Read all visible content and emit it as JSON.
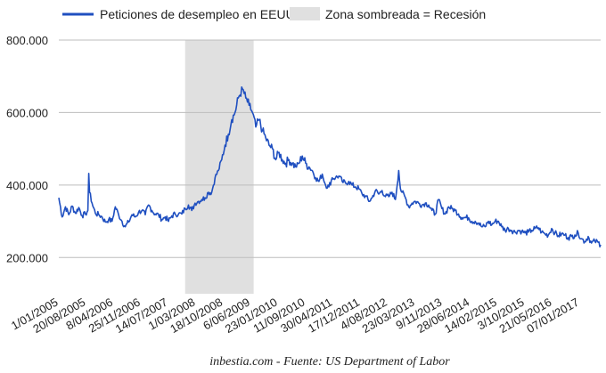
{
  "chart_data": {
    "type": "line",
    "title": "",
    "xlabel": "",
    "ylabel": "",
    "xlim": [
      "2005-01-01",
      "2017-07-01"
    ],
    "ylim": [
      100000,
      800000
    ],
    "grid": true,
    "legend_position": "top",
    "y_ticks": [
      {
        "value": 200000,
        "label": "200.000"
      },
      {
        "value": 400000,
        "label": "400.000"
      },
      {
        "value": 600000,
        "label": "600.000"
      },
      {
        "value": 800000,
        "label": "800.000"
      }
    ],
    "x_ticks": [
      {
        "date": "2005-01-01",
        "label": "1/01/2005"
      },
      {
        "date": "2005-08-20",
        "label": "20/08/2005"
      },
      {
        "date": "2006-04-08",
        "label": "8/04/2006"
      },
      {
        "date": "2006-11-25",
        "label": "25/11/2006"
      },
      {
        "date": "2007-07-14",
        "label": "14/07/2007"
      },
      {
        "date": "2008-03-01",
        "label": "1/03/2008"
      },
      {
        "date": "2008-10-18",
        "label": "18/10/2008"
      },
      {
        "date": "2009-06-06",
        "label": "6/06/2009"
      },
      {
        "date": "2010-01-23",
        "label": "23/01/2010"
      },
      {
        "date": "2010-09-11",
        "label": "11/09/2010"
      },
      {
        "date": "2011-04-30",
        "label": "30/04/2011"
      },
      {
        "date": "2011-12-17",
        "label": "17/12/2011"
      },
      {
        "date": "2012-08-04",
        "label": "4/08/2012"
      },
      {
        "date": "2013-03-23",
        "label": "23/03/2013"
      },
      {
        "date": "2013-11-09",
        "label": "9/11/2013"
      },
      {
        "date": "2014-06-28",
        "label": "28/06/2014"
      },
      {
        "date": "2015-02-14",
        "label": "14/02/2015"
      },
      {
        "date": "2015-10-03",
        "label": "3/10/2015"
      },
      {
        "date": "2016-05-21",
        "label": "21/05/2016"
      },
      {
        "date": "2017-01-07",
        "label": "07/01/2017"
      }
    ],
    "recession": {
      "name": "Zona sombreada = Recesión",
      "start": "2007-12-01",
      "end": "2009-06-30",
      "color": "#e0e0e0"
    },
    "series": [
      {
        "name": "Peticiones de desempleo en EEUU",
        "color": "#1f4fc0",
        "points": [
          [
            "2005-01-01",
            365000
          ],
          [
            "2005-01-29",
            312000
          ],
          [
            "2005-02-26",
            340000
          ],
          [
            "2005-03-26",
            318000
          ],
          [
            "2005-04-23",
            342000
          ],
          [
            "2005-05-21",
            322000
          ],
          [
            "2005-06-18",
            338000
          ],
          [
            "2005-07-16",
            316000
          ],
          [
            "2005-08-13",
            320000
          ],
          [
            "2005-09-03",
            330000
          ],
          [
            "2005-09-10",
            432000
          ],
          [
            "2005-09-17",
            380000
          ],
          [
            "2005-10-08",
            350000
          ],
          [
            "2005-11-05",
            322000
          ],
          [
            "2005-12-03",
            318000
          ],
          [
            "2005-12-31",
            312000
          ],
          [
            "2006-01-28",
            298000
          ],
          [
            "2006-02-25",
            305000
          ],
          [
            "2006-03-25",
            300000
          ],
          [
            "2006-04-22",
            340000
          ],
          [
            "2006-05-20",
            318000
          ],
          [
            "2006-06-17",
            300000
          ],
          [
            "2006-07-15",
            285000
          ],
          [
            "2006-08-12",
            298000
          ],
          [
            "2006-09-09",
            318000
          ],
          [
            "2006-10-07",
            312000
          ],
          [
            "2006-11-04",
            325000
          ],
          [
            "2006-12-02",
            330000
          ],
          [
            "2006-12-30",
            318000
          ],
          [
            "2007-01-27",
            345000
          ],
          [
            "2007-02-24",
            330000
          ],
          [
            "2007-03-24",
            320000
          ],
          [
            "2007-04-21",
            318000
          ],
          [
            "2007-05-19",
            305000
          ],
          [
            "2007-06-16",
            312000
          ],
          [
            "2007-07-14",
            300000
          ],
          [
            "2007-08-11",
            315000
          ],
          [
            "2007-09-08",
            320000
          ],
          [
            "2007-10-06",
            320000
          ],
          [
            "2007-11-03",
            320000
          ],
          [
            "2007-12-01",
            335000
          ],
          [
            "2007-12-29",
            345000
          ],
          [
            "2008-01-26",
            330000
          ],
          [
            "2008-02-23",
            350000
          ],
          [
            "2008-03-22",
            355000
          ],
          [
            "2008-04-19",
            360000
          ],
          [
            "2008-05-17",
            365000
          ],
          [
            "2008-06-14",
            380000
          ],
          [
            "2008-07-12",
            380000
          ],
          [
            "2008-08-09",
            420000
          ],
          [
            "2008-09-06",
            440000
          ],
          [
            "2008-10-04",
            470000
          ],
          [
            "2008-11-01",
            510000
          ],
          [
            "2008-11-29",
            540000
          ],
          [
            "2008-12-27",
            580000
          ],
          [
            "2009-01-24",
            600000
          ],
          [
            "2009-02-21",
            640000
          ],
          [
            "2009-03-28",
            665000
          ],
          [
            "2009-04-25",
            640000
          ],
          [
            "2009-05-23",
            620000
          ],
          [
            "2009-06-20",
            600000
          ],
          [
            "2009-07-18",
            560000
          ],
          [
            "2009-08-15",
            580000
          ],
          [
            "2009-09-12",
            550000
          ],
          [
            "2009-10-10",
            530000
          ],
          [
            "2009-11-07",
            510000
          ],
          [
            "2009-12-05",
            500000
          ],
          [
            "2010-01-02",
            470000
          ],
          [
            "2010-01-30",
            490000
          ],
          [
            "2010-02-27",
            470000
          ],
          [
            "2010-03-27",
            460000
          ],
          [
            "2010-04-24",
            470000
          ],
          [
            "2010-05-22",
            460000
          ],
          [
            "2010-06-19",
            450000
          ],
          [
            "2010-07-17",
            460000
          ],
          [
            "2010-08-14",
            480000
          ],
          [
            "2010-09-11",
            460000
          ],
          [
            "2010-10-09",
            450000
          ],
          [
            "2010-11-06",
            440000
          ],
          [
            "2010-12-04",
            420000
          ],
          [
            "2011-01-01",
            410000
          ],
          [
            "2011-01-29",
            430000
          ],
          [
            "2011-02-26",
            400000
          ],
          [
            "2011-03-26",
            395000
          ],
          [
            "2011-04-23",
            420000
          ],
          [
            "2011-05-21",
            420000
          ],
          [
            "2011-06-18",
            425000
          ],
          [
            "2011-07-16",
            410000
          ],
          [
            "2011-08-13",
            405000
          ],
          [
            "2011-09-10",
            410000
          ],
          [
            "2011-10-08",
            400000
          ],
          [
            "2011-11-05",
            395000
          ],
          [
            "2011-12-03",
            390000
          ],
          [
            "2011-12-31",
            375000
          ],
          [
            "2012-01-28",
            370000
          ],
          [
            "2012-02-25",
            355000
          ],
          [
            "2012-03-24",
            365000
          ],
          [
            "2012-04-21",
            385000
          ],
          [
            "2012-05-19",
            375000
          ],
          [
            "2012-06-16",
            385000
          ],
          [
            "2012-07-14",
            368000
          ],
          [
            "2012-08-11",
            368000
          ],
          [
            "2012-09-08",
            380000
          ],
          [
            "2012-10-06",
            360000
          ],
          [
            "2012-11-03",
            440000
          ],
          [
            "2012-11-17",
            390000
          ],
          [
            "2012-12-01",
            380000
          ],
          [
            "2012-12-29",
            365000
          ],
          [
            "2013-01-26",
            340000
          ],
          [
            "2013-02-23",
            350000
          ],
          [
            "2013-03-23",
            355000
          ],
          [
            "2013-04-20",
            350000
          ],
          [
            "2013-05-18",
            345000
          ],
          [
            "2013-06-15",
            350000
          ],
          [
            "2013-07-13",
            345000
          ],
          [
            "2013-08-10",
            330000
          ],
          [
            "2013-09-07",
            320000
          ],
          [
            "2013-10-05",
            360000
          ],
          [
            "2013-11-02",
            335000
          ],
          [
            "2013-11-30",
            320000
          ],
          [
            "2013-12-28",
            340000
          ],
          [
            "2014-01-25",
            335000
          ],
          [
            "2014-02-22",
            330000
          ],
          [
            "2014-03-22",
            320000
          ],
          [
            "2014-04-19",
            310000
          ],
          [
            "2014-05-17",
            310000
          ],
          [
            "2014-06-14",
            310000
          ],
          [
            "2014-07-12",
            300000
          ],
          [
            "2014-08-09",
            300000
          ],
          [
            "2014-09-06",
            295000
          ],
          [
            "2014-10-04",
            285000
          ],
          [
            "2014-11-01",
            285000
          ],
          [
            "2014-11-29",
            300000
          ],
          [
            "2014-12-27",
            290000
          ],
          [
            "2015-01-24",
            300000
          ],
          [
            "2015-02-21",
            300000
          ],
          [
            "2015-03-21",
            285000
          ],
          [
            "2015-04-18",
            275000
          ],
          [
            "2015-05-16",
            280000
          ],
          [
            "2015-06-13",
            275000
          ],
          [
            "2015-07-11",
            270000
          ],
          [
            "2015-08-08",
            275000
          ],
          [
            "2015-09-05",
            272000
          ],
          [
            "2015-10-03",
            268000
          ],
          [
            "2015-10-31",
            270000
          ],
          [
            "2015-11-28",
            275000
          ],
          [
            "2015-12-26",
            280000
          ],
          [
            "2016-01-23",
            282000
          ],
          [
            "2016-02-20",
            270000
          ],
          [
            "2016-03-19",
            265000
          ],
          [
            "2016-04-16",
            262000
          ],
          [
            "2016-05-14",
            280000
          ],
          [
            "2016-06-11",
            268000
          ],
          [
            "2016-07-09",
            260000
          ],
          [
            "2016-08-06",
            265000
          ],
          [
            "2016-09-03",
            262000
          ],
          [
            "2016-10-01",
            255000
          ],
          [
            "2016-10-29",
            258000
          ],
          [
            "2016-11-26",
            262000
          ],
          [
            "2016-12-24",
            268000
          ],
          [
            "2017-01-21",
            252000
          ],
          [
            "2017-02-18",
            244000
          ],
          [
            "2017-03-18",
            258000
          ],
          [
            "2017-04-15",
            240000
          ],
          [
            "2017-05-13",
            245000
          ],
          [
            "2017-06-10",
            242000
          ],
          [
            "2017-07-01",
            235000
          ]
        ]
      }
    ]
  },
  "source": "inbestia.com - Fuente: US Department of Labor"
}
